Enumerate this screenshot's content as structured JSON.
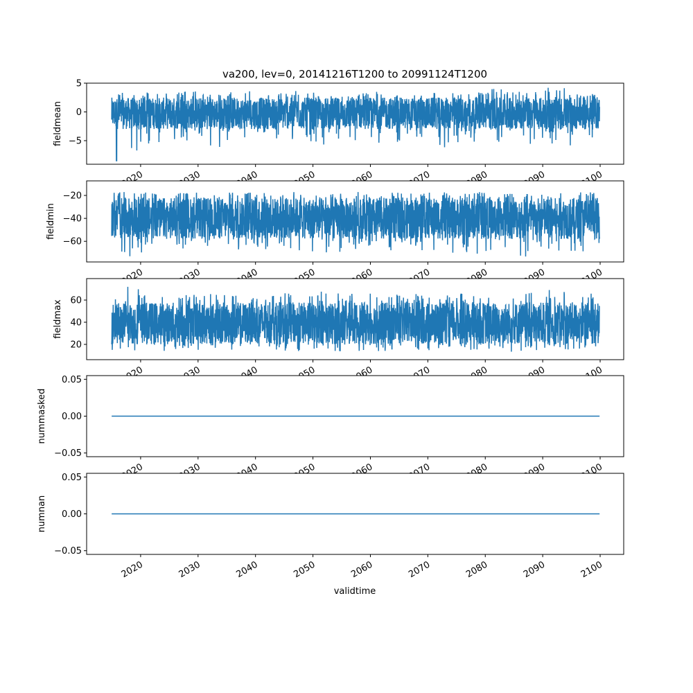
{
  "chart_data": {
    "type": "line",
    "title": "va200, lev=0, 20141216T1200 to 20991124T1200",
    "xlabel": "validtime",
    "x_range": [
      2014.96,
      2099.9
    ],
    "xlim": [
      2010.6,
      2104.1
    ],
    "xticks": [
      2020,
      2030,
      2040,
      2050,
      2060,
      2070,
      2080,
      2090,
      2100
    ],
    "color": "#1f77b4",
    "envelope_bins_start_years": [
      2015,
      2020,
      2025,
      2030,
      2035,
      2040,
      2045,
      2050,
      2055,
      2060,
      2065,
      2070,
      2075,
      2080,
      2085,
      2090,
      2095
    ],
    "panels": [
      {
        "ylabel": "fieldmean",
        "ylim": [
          -9.1,
          5
        ],
        "yticks": [
          -5,
          0,
          5
        ],
        "ytick_labels": [
          "−5",
          "0",
          "5"
        ],
        "env_max": [
          3.7,
          3.5,
          3.6,
          3.5,
          3.6,
          3.3,
          3.8,
          3.4,
          3.5,
          3.6,
          3.5,
          3.6,
          3.4,
          4.3,
          3.5,
          4.2,
          3.2
        ],
        "env_min": [
          -8.5,
          -5.6,
          -5.0,
          -6.3,
          -5.0,
          -4.9,
          -5.1,
          -5.7,
          -5.2,
          -5.5,
          -5.0,
          -6.3,
          -5.5,
          -5.5,
          -5.8,
          -5.9,
          -5.0
        ],
        "typ_max": [
          2.5,
          2.5,
          2.5,
          2.5,
          2.5,
          2.5,
          2.5,
          2.5,
          2.5,
          2.5,
          2.5,
          2.5,
          2.5,
          2.5,
          2.5,
          2.5,
          2.5
        ],
        "typ_min": [
          -3,
          -3,
          -3,
          -3,
          -3,
          -3,
          -3,
          -3,
          -3,
          -3,
          -3,
          -3,
          -3,
          -3,
          -3,
          -3,
          -3
        ]
      },
      {
        "ylabel": "fieldmin",
        "ylim": [
          -78,
          -7.3
        ],
        "yticks": [
          -60,
          -40,
          -20
        ],
        "ytick_labels": [
          "−60",
          "−40",
          "−20"
        ],
        "env_max": [
          -17,
          -17,
          -17,
          -17,
          -17,
          -17,
          -17,
          -17,
          -17,
          -17,
          -17,
          -17,
          -17,
          -17,
          -17,
          -17,
          -17
        ],
        "env_min": [
          -73,
          -71,
          -68,
          -69,
          -68,
          -69,
          -72,
          -70,
          -68,
          -70,
          -68,
          -73,
          -72,
          -70,
          -75,
          -70,
          -69
        ],
        "typ_max": [
          -22,
          -22,
          -22,
          -22,
          -22,
          -22,
          -22,
          -22,
          -22,
          -22,
          -22,
          -22,
          -22,
          -22,
          -22,
          -22,
          -22
        ],
        "typ_min": [
          -58,
          -58,
          -58,
          -58,
          -58,
          -58,
          -58,
          -58,
          -58,
          -58,
          -58,
          -58,
          -58,
          -58,
          -58,
          -58,
          -58
        ]
      },
      {
        "ylabel": "fieldmax",
        "ylim": [
          6.2,
          79.4
        ],
        "yticks": [
          20,
          40,
          60
        ],
        "ytick_labels": [
          "20",
          "40",
          "60"
        ],
        "env_max": [
          73,
          66,
          65,
          66,
          65,
          64,
          67,
          68,
          66,
          67,
          66,
          65,
          67,
          65,
          68,
          70,
          72
        ],
        "env_min": [
          12,
          14,
          15,
          15,
          15,
          15,
          14,
          13,
          14,
          14,
          14,
          14,
          15,
          13,
          14,
          15,
          16
        ],
        "typ_max": [
          58,
          58,
          58,
          58,
          58,
          58,
          58,
          58,
          58,
          58,
          58,
          58,
          58,
          58,
          58,
          58,
          58
        ],
        "typ_min": [
          20,
          20,
          20,
          20,
          20,
          20,
          20,
          20,
          20,
          20,
          20,
          20,
          20,
          20,
          20,
          20,
          20
        ]
      },
      {
        "ylabel": "nummasked",
        "ylim": [
          -0.055,
          0.055
        ],
        "yticks": [
          -0.05,
          0,
          0.05
        ],
        "ytick_labels": [
          "−0.05",
          "0.00",
          "0.05"
        ],
        "constant": 0
      },
      {
        "ylabel": "numnan",
        "ylim": [
          -0.055,
          0.055
        ],
        "yticks": [
          -0.05,
          0,
          0.05
        ],
        "ytick_labels": [
          "−0.05",
          "0.00",
          "0.05"
        ],
        "constant": 0
      }
    ]
  }
}
